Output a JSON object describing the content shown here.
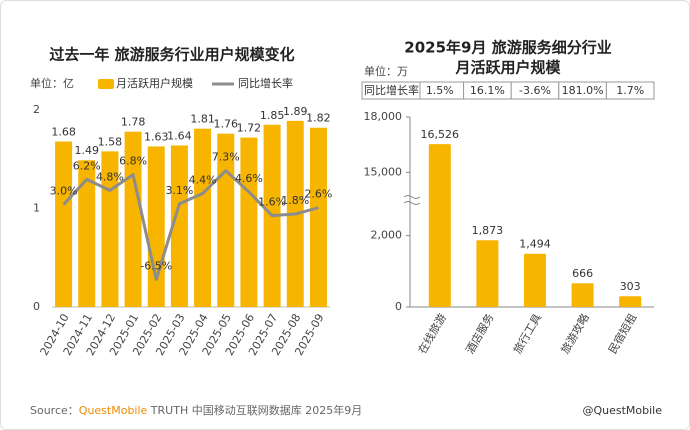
{
  "chart_data": [
    {
      "type": "bar_line",
      "title": "过去一年 旅游服务行业用户规模变化",
      "unit": "单位：亿",
      "categories": [
        "2024-10",
        "2024-11",
        "2024-12",
        "2025-01",
        "2025-02",
        "2025-03",
        "2025-04",
        "2025-05",
        "2025-06",
        "2025-07",
        "2025-08",
        "2025-09"
      ],
      "series": [
        {
          "name": "月活跃用户规模",
          "color": "#f7b500",
          "type": "bar",
          "values": [
            1.68,
            1.49,
            1.58,
            1.78,
            1.63,
            1.64,
            1.81,
            1.76,
            1.72,
            1.85,
            1.89,
            1.82
          ]
        },
        {
          "name": "同比增长率",
          "color": "#8c8c8c",
          "type": "line",
          "axis": "y2",
          "values": [
            3.0,
            6.2,
            4.8,
            6.8,
            -6.5,
            3.1,
            4.4,
            7.3,
            4.6,
            1.6,
            1.8,
            2.6
          ],
          "value_labels": [
            "3.0%",
            "6.2%",
            "4.8%",
            "6.8%",
            "-6.5%",
            "3.1%",
            "4.4%",
            "7.3%",
            "4.6%",
            "1.6%",
            "1.8%",
            "2.6%"
          ]
        }
      ],
      "ylim": [
        0,
        2
      ],
      "yticks": [
        0,
        1,
        2
      ],
      "y2lim": [
        -10,
        15
      ]
    },
    {
      "type": "bar",
      "title_lines": [
        "2025年9月 旅游服务细分行业",
        "月活跃用户规模"
      ],
      "unit": "单位：万",
      "growth_row": [
        "同比增长率",
        "1.5%",
        "16.1%",
        "-3.6%",
        "181.0%",
        "1.7%"
      ],
      "categories": [
        "在线旅游",
        "酒店服务",
        "旅行工具",
        "旅游攻略",
        "民宿短租"
      ],
      "values": [
        16526,
        1873,
        1494,
        666,
        303
      ],
      "value_labels": [
        "16,526",
        "1,873",
        "1,494",
        "666",
        "303"
      ],
      "color": "#f7b500",
      "ylim": [
        0,
        18000
      ],
      "ybreak": [
        3000,
        13500
      ],
      "yticks": [
        0,
        {
          "value": 2000,
          "label": "2,000"
        },
        {
          "value": 15000,
          "label": "15,000"
        },
        {
          "value": 18000,
          "label": "18,000"
        }
      ]
    }
  ],
  "source": {
    "prefix": "Source：",
    "brand": "QuestMobile",
    "rest": " TRUTH 中国移动互联网数据库 2025年9月"
  },
  "watermark": "@QuestMobile"
}
